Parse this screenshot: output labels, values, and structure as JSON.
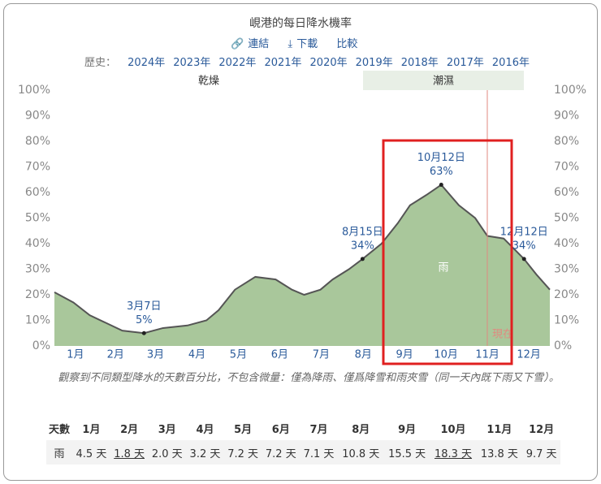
{
  "header": {
    "title": "峴港的每日降水機率",
    "links": [
      "連結",
      "下載",
      "比較"
    ],
    "history_label": "歷史：",
    "years": [
      "2024年",
      "2023年",
      "2022年",
      "2021年",
      "2020年",
      "2019年",
      "2018年",
      "2017年",
      "2016年"
    ]
  },
  "chart_data": {
    "type": "area",
    "x": [
      0,
      14,
      26,
      38,
      50,
      66,
      80,
      98,
      112,
      121,
      133,
      148,
      163,
      175,
      184,
      196,
      205,
      217,
      227,
      241,
      253,
      262,
      274,
      285,
      298,
      310,
      319,
      331,
      346,
      355,
      365
    ],
    "series": [
      {
        "name": "雨",
        "color": "#a9c79b",
        "line_color": "#555555",
        "values": [
          21,
          17,
          12,
          9,
          6,
          5,
          7,
          8,
          10,
          14,
          22,
          27,
          26,
          22,
          20,
          22,
          26,
          30,
          34,
          40,
          48,
          55,
          59,
          63,
          55,
          50,
          43,
          42,
          34,
          28,
          22
        ]
      }
    ],
    "xlim": [
      0,
      365
    ],
    "xticks": [
      {
        "value": 15.5,
        "label": "1月"
      },
      {
        "value": 45,
        "label": "2月"
      },
      {
        "value": 74.5,
        "label": "3月"
      },
      {
        "value": 105,
        "label": "4月"
      },
      {
        "value": 135.5,
        "label": "5月"
      },
      {
        "value": 166,
        "label": "6月"
      },
      {
        "value": 196.5,
        "label": "7月"
      },
      {
        "value": 227.5,
        "label": "8月"
      },
      {
        "value": 258,
        "label": "9月"
      },
      {
        "value": 288.5,
        "label": "10月"
      },
      {
        "value": 319,
        "label": "11月"
      },
      {
        "value": 349.5,
        "label": "12月"
      }
    ],
    "ylim": [
      0,
      100
    ],
    "yticks": [
      {
        "value": 0,
        "label": "0%"
      },
      {
        "value": 10,
        "label": "10%"
      },
      {
        "value": 20,
        "label": "20%"
      },
      {
        "value": 30,
        "label": "30%"
      },
      {
        "value": 40,
        "label": "40%"
      },
      {
        "value": 50,
        "label": "50%"
      },
      {
        "value": 60,
        "label": "60%"
      },
      {
        "value": 70,
        "label": "70%"
      },
      {
        "value": 80,
        "label": "80%"
      },
      {
        "value": 90,
        "label": "90%"
      },
      {
        "value": 100,
        "label": "100%"
      }
    ],
    "annotations": [
      {
        "x": 66,
        "date": "3月7日",
        "value": 5,
        "label": "5%"
      },
      {
        "x": 227,
        "date": "8月15日",
        "value": 34,
        "label": "34%"
      },
      {
        "x": 285,
        "date": "10月12日",
        "value": 63,
        "label": "63%"
      },
      {
        "x": 346,
        "date": "12月12日",
        "value": 34,
        "label": "34%"
      }
    ],
    "bands": [
      "乾燥",
      "潮濕"
    ],
    "now_label": "現在"
  },
  "caption": "觀察到不同類型降水的天數百分比，不包含微量：僅為降雨、僅爲降雪和雨夾雪（同一天內既下雨又下雪）。",
  "table": {
    "header": [
      "天數",
      "1月",
      "2月",
      "3月",
      "4月",
      "5月",
      "6月",
      "7月",
      "8月",
      "9月",
      "10月",
      "11月",
      "12月"
    ],
    "rows": [
      [
        "雨",
        "4.5 天",
        "1.8 天",
        "2.0 天",
        "3.2 天",
        "7.2 天",
        "7.2 天",
        "7.1 天",
        "10.8 天",
        "15.5 天",
        "18.3 天",
        "13.8 天",
        "9.7 天"
      ]
    ]
  }
}
